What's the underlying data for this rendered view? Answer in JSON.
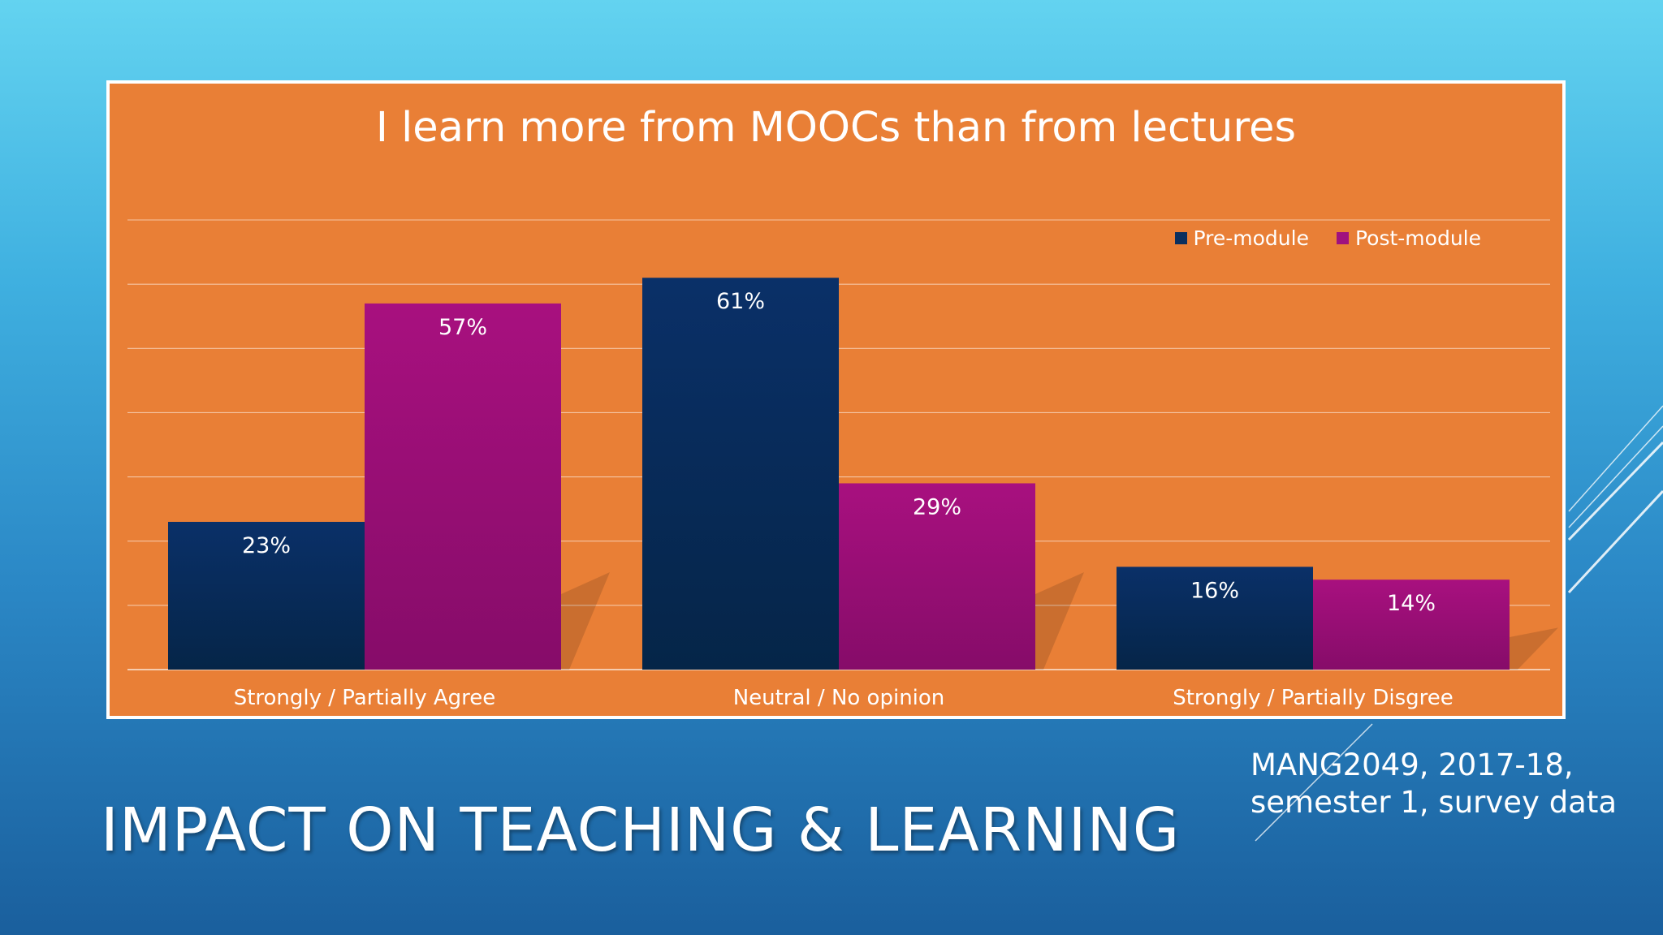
{
  "slide": {
    "title": "IMPACT ON TEACHING & LEARNING",
    "source_line1": "MANG2049, 2017-18,",
    "source_line2": "semester 1, survey data"
  },
  "colors": {
    "pre": "#0b2f5e",
    "post": "#a0117e",
    "plot_bg": "#e97f36"
  },
  "chart_data": {
    "type": "bar",
    "title": "I learn more from MOOCs than from lectures",
    "categories": [
      "Strongly / Partially Agree",
      "Neutral / No opinion",
      "Strongly / Partially Disgree"
    ],
    "series": [
      {
        "name": "Pre-module",
        "values": [
          23,
          61,
          16
        ],
        "labels": [
          "23%",
          "61%",
          "16%"
        ]
      },
      {
        "name": "Post-module",
        "values": [
          57,
          29,
          14
        ],
        "labels": [
          "57%",
          "29%",
          "14%"
        ]
      }
    ],
    "ylim": [
      0,
      70
    ],
    "grid": true,
    "legend": "top-right"
  }
}
